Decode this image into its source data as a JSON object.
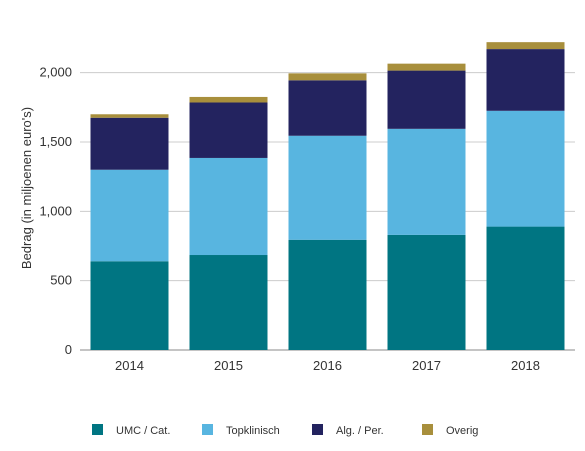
{
  "chart_data": {
    "type": "bar",
    "stacked": true,
    "title": "",
    "xlabel": "",
    "ylabel": "Bedrag (in miljoenen euro's)",
    "ylim": [
      0,
      2250
    ],
    "yticks": [
      0,
      500,
      1000,
      1500,
      2000
    ],
    "ytick_labels": [
      "0",
      "500",
      "1,000",
      "1,500",
      "2,000"
    ],
    "grid": "horizontal",
    "legend_position": "bottom",
    "categories": [
      "2014",
      "2015",
      "2016",
      "2017",
      "2018"
    ],
    "series": [
      {
        "name": "UMC / Cat.",
        "color": "#007582",
        "values": [
          640,
          685,
          795,
          830,
          890
        ]
      },
      {
        "name": "Topklinisch",
        "color": "#58b5e0",
        "values": [
          660,
          700,
          750,
          765,
          835
        ]
      },
      {
        "name": "Alg. / Per.",
        "color": "#23235f",
        "values": [
          375,
          400,
          400,
          420,
          445
        ]
      },
      {
        "name": "Overig",
        "color": "#a88f3c",
        "values": [
          25,
          40,
          50,
          50,
          50
        ]
      }
    ]
  }
}
